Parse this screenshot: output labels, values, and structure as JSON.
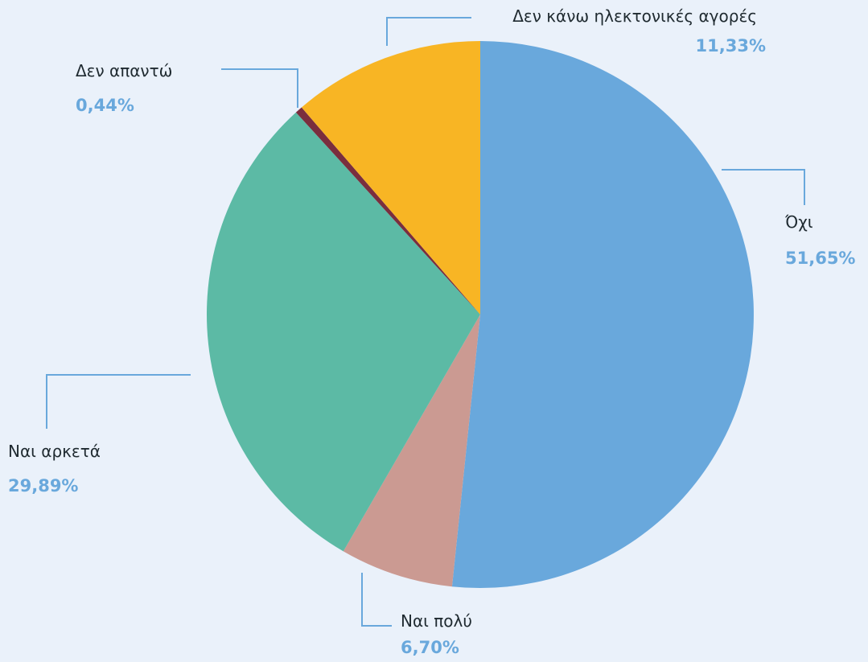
{
  "chart_data": {
    "type": "pie",
    "categories": [
      "Όχι",
      "Ναι πολύ",
      "Ναι αρκετά",
      "Δεν απαντώ",
      "Δεν κάνω ηλεκτονικές αγορές"
    ],
    "values": [
      51.65,
      6.7,
      29.89,
      0.44,
      11.33
    ],
    "value_labels": [
      "51,65%",
      "6,70%",
      "29,89%",
      "0,44%",
      "11,33%"
    ],
    "colors": [
      "#69A8DC",
      "#CB9A92",
      "#5CBAA5",
      "#7A2E3E",
      "#F8B524"
    ],
    "value_color": "#69A8DC",
    "leader_color": "#69A8DC",
    "start_angle": "12 o'clock",
    "direction": "clockwise",
    "legend": "none (direct labels)"
  }
}
